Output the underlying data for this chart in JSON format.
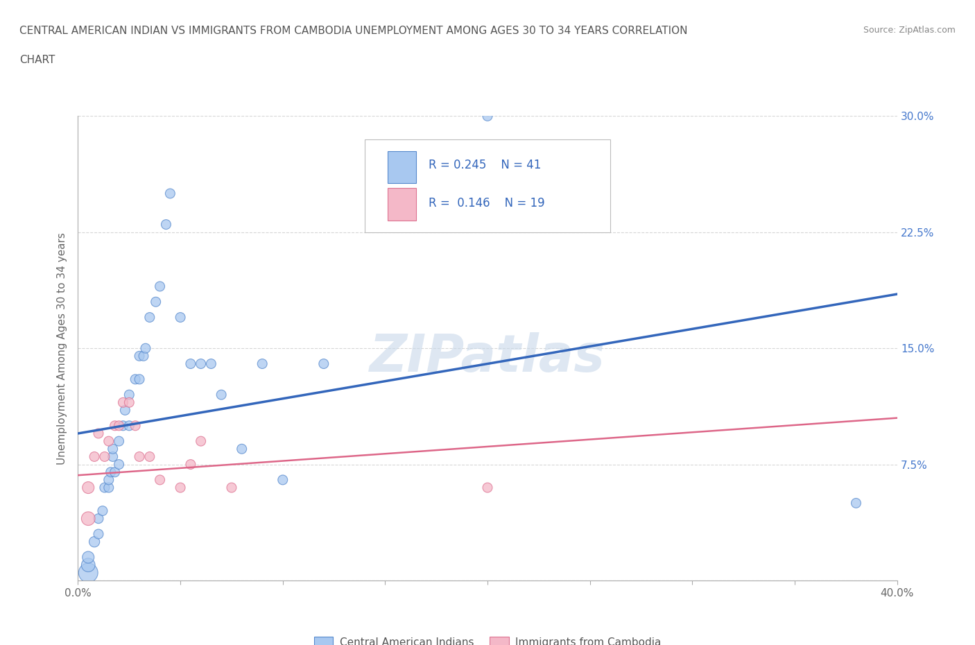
{
  "title_line1": "CENTRAL AMERICAN INDIAN VS IMMIGRANTS FROM CAMBODIA UNEMPLOYMENT AMONG AGES 30 TO 34 YEARS CORRELATION",
  "title_line2": "CHART",
  "source": "Source: ZipAtlas.com",
  "ylabel": "Unemployment Among Ages 30 to 34 years",
  "xmin": 0.0,
  "xmax": 0.4,
  "ymin": 0.0,
  "ymax": 0.3,
  "color_blue": "#a8c8f0",
  "color_blue_edge": "#5588cc",
  "color_pink": "#f4b8c8",
  "color_pink_edge": "#dd7090",
  "line_blue_color": "#3366bb",
  "line_pink_color": "#dd6688",
  "watermark": "ZIPatlas",
  "blue_scatter_x": [
    0.005,
    0.005,
    0.005,
    0.008,
    0.01,
    0.01,
    0.012,
    0.013,
    0.015,
    0.015,
    0.016,
    0.017,
    0.017,
    0.018,
    0.02,
    0.02,
    0.022,
    0.023,
    0.025,
    0.025,
    0.028,
    0.03,
    0.03,
    0.032,
    0.033,
    0.035,
    0.038,
    0.04,
    0.043,
    0.045,
    0.05,
    0.055,
    0.06,
    0.065,
    0.07,
    0.08,
    0.09,
    0.1,
    0.12,
    0.2,
    0.38
  ],
  "blue_scatter_y": [
    0.005,
    0.01,
    0.015,
    0.025,
    0.03,
    0.04,
    0.045,
    0.06,
    0.06,
    0.065,
    0.07,
    0.08,
    0.085,
    0.07,
    0.075,
    0.09,
    0.1,
    0.11,
    0.1,
    0.12,
    0.13,
    0.13,
    0.145,
    0.145,
    0.15,
    0.17,
    0.18,
    0.19,
    0.23,
    0.25,
    0.17,
    0.14,
    0.14,
    0.14,
    0.12,
    0.085,
    0.14,
    0.065,
    0.14,
    0.3,
    0.05
  ],
  "blue_scatter_size": [
    400,
    200,
    150,
    120,
    100,
    100,
    100,
    100,
    100,
    100,
    100,
    100,
    100,
    100,
    100,
    100,
    100,
    100,
    100,
    100,
    100,
    100,
    100,
    100,
    100,
    100,
    100,
    100,
    100,
    100,
    100,
    100,
    100,
    100,
    100,
    100,
    100,
    100,
    100,
    100,
    100
  ],
  "pink_scatter_x": [
    0.005,
    0.005,
    0.008,
    0.01,
    0.013,
    0.015,
    0.018,
    0.02,
    0.022,
    0.025,
    0.028,
    0.03,
    0.035,
    0.04,
    0.05,
    0.055,
    0.06,
    0.075,
    0.2
  ],
  "pink_scatter_y": [
    0.04,
    0.06,
    0.08,
    0.095,
    0.08,
    0.09,
    0.1,
    0.1,
    0.115,
    0.115,
    0.1,
    0.08,
    0.08,
    0.065,
    0.06,
    0.075,
    0.09,
    0.06,
    0.06
  ],
  "pink_scatter_size": [
    200,
    150,
    100,
    100,
    100,
    100,
    100,
    100,
    100,
    100,
    100,
    100,
    100,
    100,
    100,
    100,
    100,
    100,
    100
  ],
  "blue_line_x": [
    0.0,
    0.4
  ],
  "blue_line_y": [
    0.095,
    0.185
  ],
  "pink_line_x": [
    0.0,
    0.4
  ],
  "pink_line_y": [
    0.068,
    0.105
  ]
}
